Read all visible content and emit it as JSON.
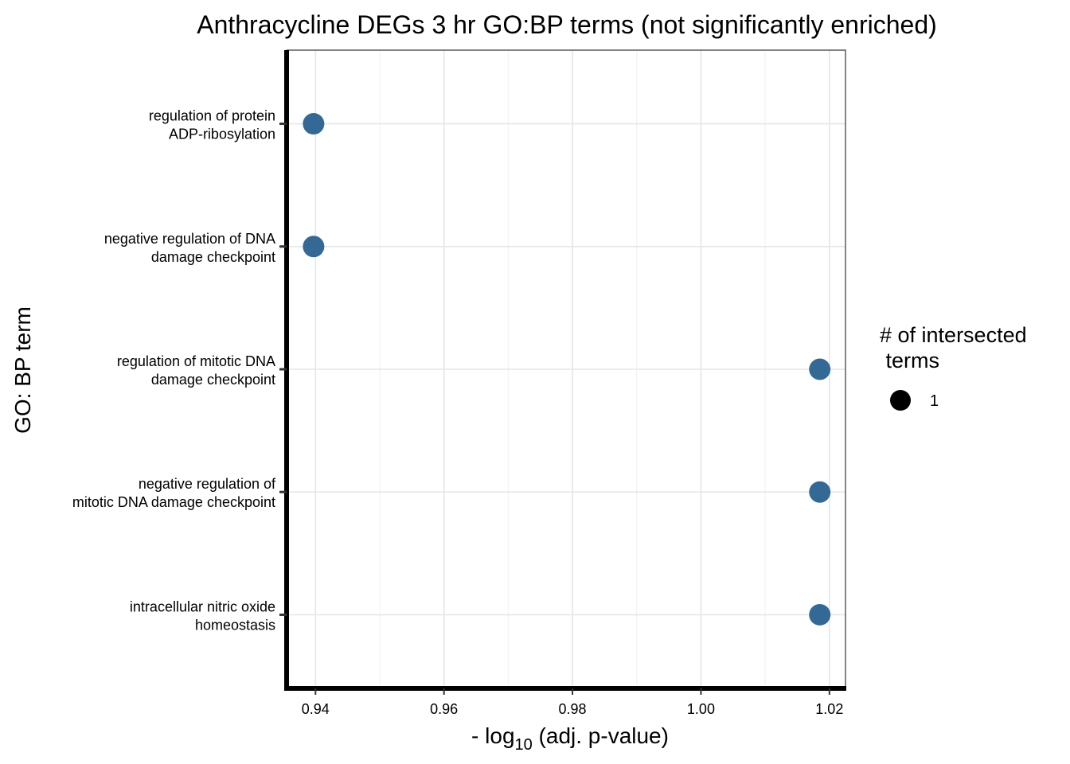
{
  "chart_data": {
    "type": "scatter",
    "title": "Anthracycline DEGs 3 hr GO:BP terms (not significantly enriched)",
    "xlabel": {
      "prefix": "- log",
      "subscript": "10",
      "suffix": " (adj. p-value)"
    },
    "ylabel": "GO: BP term",
    "xlim": [
      0.9355,
      1.0225
    ],
    "x_ticks": [
      0.94,
      0.96,
      0.98,
      1.0,
      1.02
    ],
    "x_tick_labels": [
      "0.94",
      "0.96",
      "0.98",
      "1.00",
      "1.02"
    ],
    "categories": [
      {
        "lines": [
          "regulation of protein",
          "ADP-ribosylation"
        ],
        "x": 0.9397
      },
      {
        "lines": [
          "negative regulation of DNA",
          "damage checkpoint"
        ],
        "x": 0.9397
      },
      {
        "lines": [
          "regulation of mitotic DNA",
          "damage checkpoint"
        ],
        "x": 1.0185
      },
      {
        "lines": [
          "negative regulation of",
          "mitotic DNA damage checkpoint"
        ],
        "x": 1.0185
      },
      {
        "lines": [
          "intracellular nitric oxide",
          "homeostasis"
        ],
        "x": 1.0185
      }
    ],
    "point_color": "#356995",
    "grid": true,
    "legend": {
      "title_lines": [
        "# of intersected",
        " terms"
      ],
      "entries": [
        {
          "label": "1",
          "size": 1
        }
      ],
      "position": "right"
    }
  }
}
